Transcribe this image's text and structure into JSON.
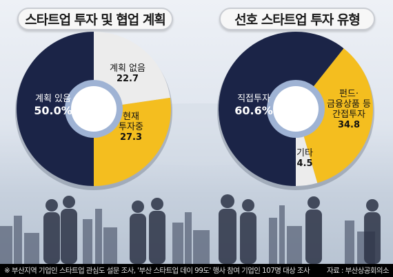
{
  "chart_data": [
    {
      "type": "pie",
      "title": "스타트업 투자 및 협업 계획",
      "slices": [
        {
          "label": "계획 있음",
          "value": 50.0,
          "display": "50.0%",
          "color": "#1b2447"
        },
        {
          "label": "계획 없음",
          "value": 22.7,
          "display": "22.7",
          "color": "#ececec"
        },
        {
          "label": "현재 투자중",
          "value": 27.3,
          "display": "27.3",
          "color": "#f4be1f"
        }
      ]
    },
    {
      "type": "pie",
      "title": "선호 스타트업 투자 유형",
      "slices": [
        {
          "label": "직접투자",
          "value": 60.6,
          "display": "60.6%",
          "color": "#1b2447"
        },
        {
          "label": "펀드·금융상품 등 간접투자",
          "value": 34.8,
          "display": "34.8",
          "color": "#f4be1f"
        },
        {
          "label": "기타",
          "value": 4.5,
          "display": "4.5",
          "color": "#ececec"
        }
      ]
    }
  ],
  "labels": {
    "c1_s1_name": "계획 있음",
    "c1_s2_name": "계획 없음",
    "c1_s3_name_a": "현재",
    "c1_s3_name_b": "투자중",
    "c2_s1_name": "직접투자",
    "c2_s2_name_a": "펀드·",
    "c2_s2_name_b": "금융상품 등",
    "c2_s2_name_c": "간접투자",
    "c2_s3_name": "기타"
  },
  "footer": {
    "note": "※ 부산지역 기업인 스타트업 관심도 설문 조사, '부산 스타트업 데이 99도' 행사 참여 기업인 107명 대상 조사",
    "source": "자료 : 부산상공회의소"
  }
}
